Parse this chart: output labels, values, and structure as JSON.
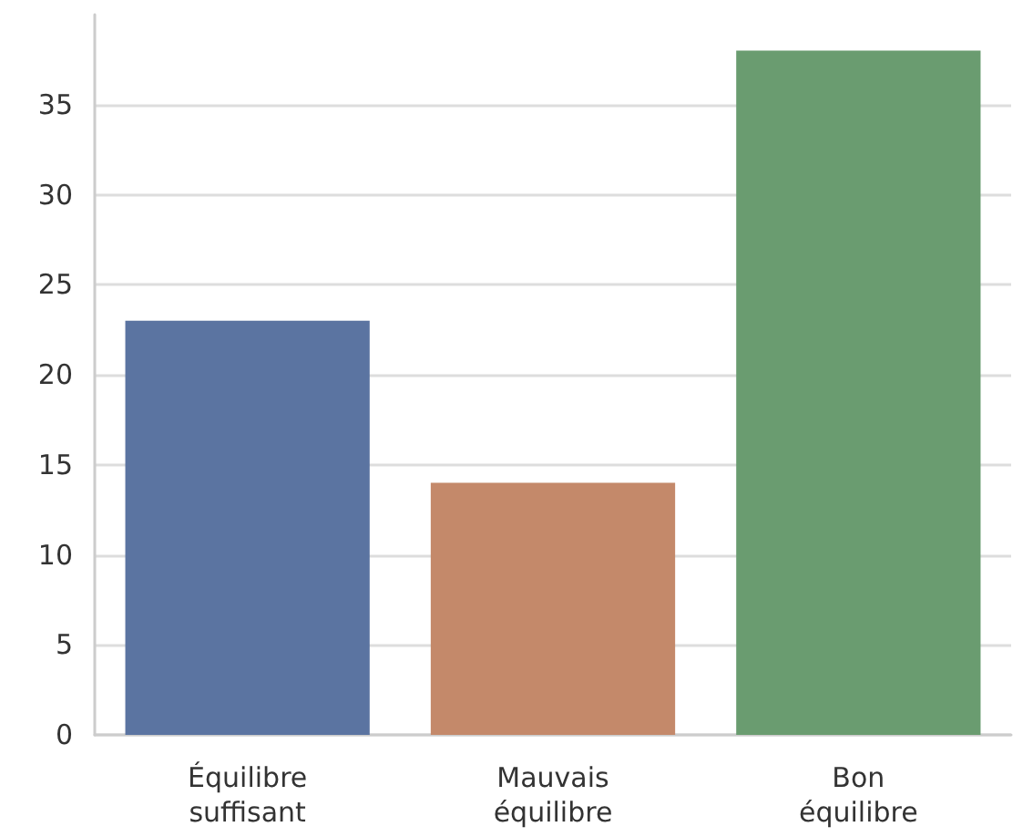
{
  "chart_data": {
    "type": "bar",
    "categories": [
      "Équilibre\nsuffisant",
      "Mauvais\néquilibre",
      "Bon\néquilibre"
    ],
    "values": [
      23,
      14,
      38
    ],
    "colors": [
      "#5b74a1",
      "#c4896a",
      "#6a9c70"
    ],
    "ylim": [
      0,
      40
    ],
    "yticks": [
      0,
      5,
      10,
      15,
      20,
      25,
      30,
      35
    ],
    "grid": "y"
  }
}
